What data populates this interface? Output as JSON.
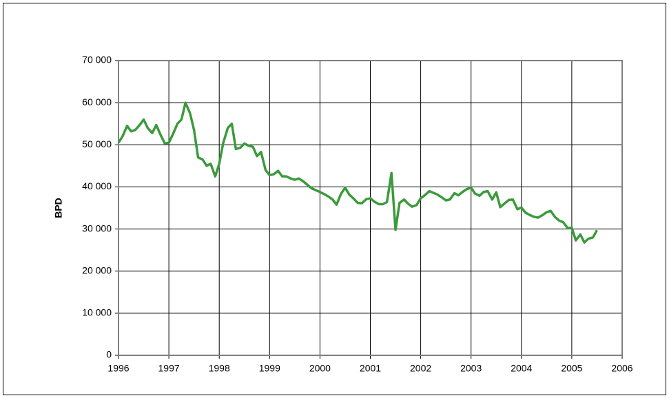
{
  "chart_data": {
    "type": "line",
    "y_label": "BPD",
    "x": [
      1996.0,
      1996.08,
      1996.17,
      1996.25,
      1996.33,
      1996.42,
      1996.5,
      1996.58,
      1996.67,
      1996.75,
      1996.83,
      1996.92,
      1997.0,
      1997.08,
      1997.17,
      1997.25,
      1997.33,
      1997.42,
      1997.5,
      1997.58,
      1997.67,
      1997.75,
      1997.83,
      1997.92,
      1998.0,
      1998.08,
      1998.17,
      1998.25,
      1998.33,
      1998.42,
      1998.5,
      1998.58,
      1998.67,
      1998.75,
      1998.83,
      1998.92,
      1999.0,
      1999.08,
      1999.17,
      1999.25,
      1999.33,
      1999.42,
      1999.5,
      1999.58,
      1999.67,
      1999.75,
      1999.83,
      1999.92,
      2000.0,
      2000.08,
      2000.17,
      2000.25,
      2000.33,
      2000.42,
      2000.5,
      2000.58,
      2000.67,
      2000.75,
      2000.83,
      2000.92,
      2001.0,
      2001.08,
      2001.17,
      2001.25,
      2001.33,
      2001.42,
      2001.5,
      2001.58,
      2001.67,
      2001.75,
      2001.83,
      2001.92,
      2002.0,
      2002.08,
      2002.17,
      2002.25,
      2002.33,
      2002.42,
      2002.5,
      2002.58,
      2002.67,
      2002.75,
      2002.83,
      2002.92,
      2003.0,
      2003.08,
      2003.17,
      2003.25,
      2003.33,
      2003.42,
      2003.5,
      2003.58,
      2003.67,
      2003.75,
      2003.83,
      2003.92,
      2004.0,
      2004.08,
      2004.17,
      2004.25,
      2004.33,
      2004.42,
      2004.5,
      2004.58,
      2004.67,
      2004.75,
      2004.83,
      2004.92,
      2005.0,
      2005.08,
      2005.17,
      2005.25,
      2005.33,
      2005.42,
      2005.5
    ],
    "series": [
      {
        "color": "#3c9a3c",
        "values": [
          50500,
          52000,
          54500,
          53200,
          53500,
          54700,
          56000,
          54000,
          52800,
          54700,
          52500,
          50300,
          50500,
          52500,
          55000,
          56000,
          60000,
          57500,
          53500,
          47000,
          46500,
          45000,
          45500,
          42500,
          45500,
          50500,
          54000,
          55000,
          49000,
          49300,
          50300,
          49800,
          49500,
          47300,
          48300,
          44000,
          42800,
          43000,
          43800,
          42500,
          42500,
          42000,
          41700,
          42000,
          41300,
          40500,
          39700,
          39200,
          38800,
          38300,
          37700,
          37000,
          35800,
          38400,
          39800,
          38200,
          37200,
          36200,
          36100,
          37100,
          37300,
          36500,
          35900,
          35900,
          36400,
          43300,
          29800,
          36200,
          37000,
          36000,
          35300,
          35700,
          37300,
          38000,
          39000,
          38600,
          38200,
          37500,
          36800,
          37000,
          38500,
          38000,
          38800,
          39500,
          39800,
          38400,
          37900,
          38800,
          39000,
          37000,
          38700,
          35200,
          36100,
          36900,
          37000,
          34700,
          35100,
          33900,
          33300,
          32900,
          32700,
          33300,
          34000,
          34300,
          32800,
          32000,
          31600,
          30200,
          30300,
          27300,
          28700,
          26800,
          27700,
          28000,
          29700
        ]
      }
    ],
    "xlim": [
      1996,
      2006
    ],
    "xticks": [
      1996,
      1997,
      1998,
      1999,
      2000,
      2001,
      2002,
      2003,
      2004,
      2005,
      2006
    ],
    "ylim": [
      0,
      70000
    ],
    "yticks": [
      {
        "value": 0,
        "label": "0"
      },
      {
        "value": 10000,
        "label": "10 000"
      },
      {
        "value": 20000,
        "label": "20 000"
      },
      {
        "value": 30000,
        "label": "30 000"
      },
      {
        "value": 40000,
        "label": "40 000"
      },
      {
        "value": 50000,
        "label": "50 000"
      },
      {
        "value": 60000,
        "label": "60 000"
      },
      {
        "value": 70000,
        "label": "70 000"
      }
    ],
    "grid": true
  }
}
